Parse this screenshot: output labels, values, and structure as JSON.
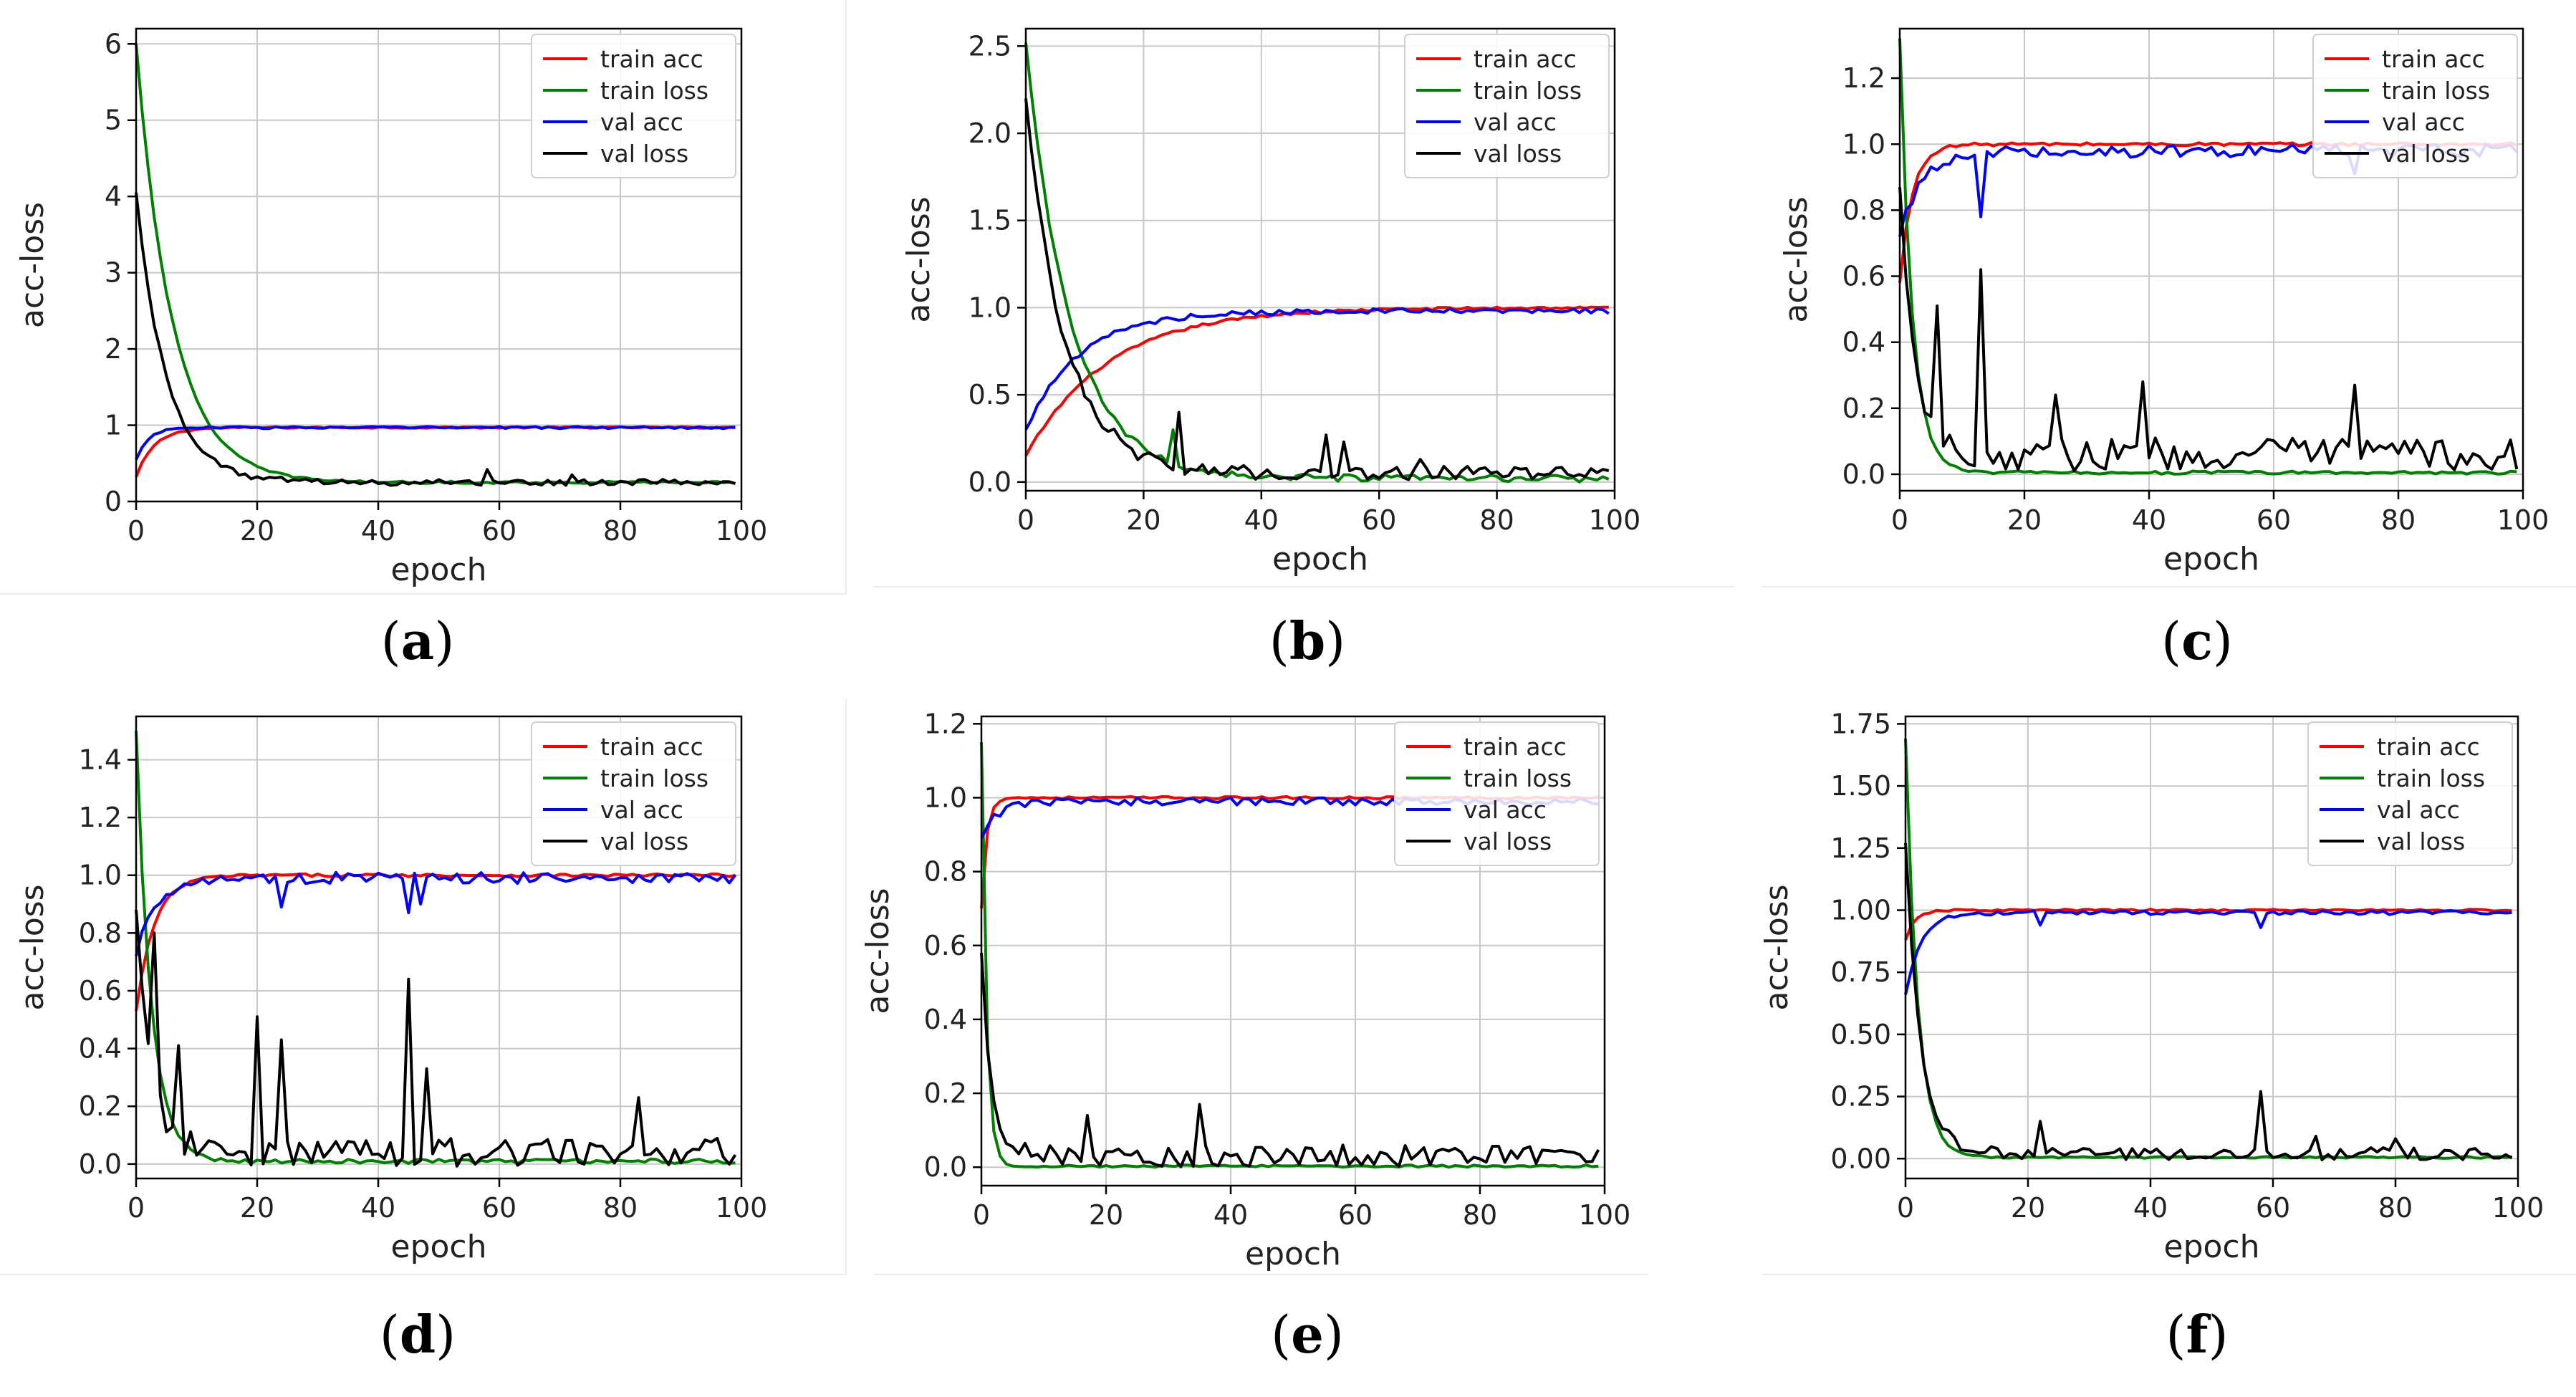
{
  "figure": {
    "captions": [
      "a",
      "b",
      "c",
      "d",
      "e",
      "f"
    ]
  },
  "colors": {
    "train_acc": "#ff0000",
    "train_loss": "#008000",
    "val_acc": "#0000ff",
    "val_loss": "#000000",
    "grid": "#c8c8c8"
  },
  "chart_data": [
    {
      "type": "line",
      "panel": "a",
      "xlabel": "epoch",
      "ylabel": "acc-loss",
      "xlim": [
        0,
        100
      ],
      "ylim": [
        0,
        6.2
      ],
      "xticks": [
        0,
        20,
        40,
        60,
        80,
        100
      ],
      "yticks": [
        0,
        1,
        2,
        3,
        4,
        5,
        6
      ],
      "ytick_labels": [
        "0",
        "1",
        "2",
        "3",
        "4",
        "5",
        "6"
      ],
      "legend": [
        "train acc",
        "train loss",
        "val acc",
        "val loss"
      ],
      "series": [
        {
          "name": "train acc",
          "kind": "acc",
          "start": 0.32,
          "plateau": 0.97,
          "tau": 3.0,
          "noise": 0.01,
          "spikes": []
        },
        {
          "name": "train loss",
          "kind": "loss",
          "start": 6.0,
          "floor": 0.25,
          "tau": 6.0,
          "noise": 0.015,
          "spikes": []
        },
        {
          "name": "val acc",
          "kind": "acc",
          "start": 0.55,
          "plateau": 0.97,
          "tau": 2.0,
          "noise": 0.015,
          "spikes": []
        },
        {
          "name": "val loss",
          "kind": "loss",
          "start": 4.05,
          "floor": 0.25,
          "tau": 5.0,
          "noise": 0.04,
          "spikes": [
            [
              58,
              0.42
            ],
            [
              72,
              0.35
            ]
          ]
        }
      ]
    },
    {
      "type": "line",
      "panel": "b",
      "xlabel": "epoch",
      "ylabel": "acc-loss",
      "xlim": [
        0,
        100
      ],
      "ylim": [
        -0.05,
        2.6
      ],
      "xticks": [
        0,
        20,
        40,
        60,
        80,
        100
      ],
      "yticks": [
        0,
        0.5,
        1,
        1.5,
        2,
        2.5
      ],
      "ytick_labels": [
        "0.0",
        "0.5",
        "1.0",
        "1.5",
        "2.0",
        "2.5"
      ],
      "legend": [
        "train acc",
        "train loss",
        "val acc",
        "val loss"
      ],
      "series": [
        {
          "name": "train acc",
          "kind": "acc",
          "start": 0.15,
          "plateau": 1.0,
          "tau": 14.0,
          "noise": 0.008,
          "spikes": []
        },
        {
          "name": "train loss",
          "kind": "loss",
          "start": 2.52,
          "floor": 0.02,
          "tau": 7.5,
          "noise": 0.02,
          "spikes": [
            [
              25,
              0.3
            ]
          ]
        },
        {
          "name": "val acc",
          "kind": "acc",
          "start": 0.3,
          "plateau": 0.98,
          "tau": 9.0,
          "noise": 0.015,
          "spikes": []
        },
        {
          "name": "val loss",
          "kind": "loss",
          "start": 2.2,
          "floor": 0.05,
          "tau": 6.5,
          "noise": 0.04,
          "spikes": [
            [
              26,
              0.4
            ],
            [
              51,
              0.27
            ],
            [
              54,
              0.23
            ],
            [
              67,
              0.13
            ]
          ]
        }
      ]
    },
    {
      "type": "line",
      "panel": "c",
      "xlabel": "epoch",
      "ylabel": "acc-loss",
      "xlim": [
        0,
        100
      ],
      "ylim": [
        -0.05,
        1.35
      ],
      "xticks": [
        0,
        20,
        40,
        60,
        80,
        100
      ],
      "yticks": [
        0,
        0.2,
        0.4,
        0.6,
        0.8,
        1.0,
        1.2
      ],
      "ytick_labels": [
        "0.0",
        "0.2",
        "0.4",
        "0.6",
        "0.8",
        "1.0",
        "1.2"
      ],
      "legend": [
        "train acc",
        "train loss",
        "val acc",
        "val loss"
      ],
      "series": [
        {
          "name": "train acc",
          "kind": "acc",
          "start": 0.58,
          "plateau": 1.0,
          "tau": 2.0,
          "noise": 0.005,
          "spikes": []
        },
        {
          "name": "train loss",
          "kind": "loss",
          "start": 1.32,
          "floor": 0.005,
          "tau": 2.0,
          "noise": 0.005,
          "spikes": []
        },
        {
          "name": "val acc",
          "kind": "acc",
          "start": 0.72,
          "plateau": 0.98,
          "tau": 3.5,
          "noise": 0.02,
          "spikes": [
            [
              13,
              0.78
            ],
            [
              73,
              0.91
            ]
          ]
        },
        {
          "name": "val loss",
          "kind": "loss",
          "start": 0.87,
          "floor": 0.06,
          "tau": 2.5,
          "noise": 0.05,
          "spikes": [
            [
              6,
              0.51
            ],
            [
              13,
              0.62
            ],
            [
              25,
              0.24
            ],
            [
              39,
              0.28
            ],
            [
              73,
              0.27
            ]
          ]
        }
      ]
    },
    {
      "type": "line",
      "panel": "d",
      "xlabel": "epoch",
      "ylabel": "acc-loss",
      "xlim": [
        0,
        100
      ],
      "ylim": [
        -0.05,
        1.55
      ],
      "xticks": [
        0,
        20,
        40,
        60,
        80,
        100
      ],
      "yticks": [
        0,
        0.2,
        0.4,
        0.6,
        0.8,
        1.0,
        1.2,
        1.4
      ],
      "ytick_labels": [
        "0.0",
        "0.2",
        "0.4",
        "0.6",
        "0.8",
        "1.0",
        "1.2",
        "1.4"
      ],
      "legend": [
        "train acc",
        "train loss",
        "val acc",
        "val loss"
      ],
      "series": [
        {
          "name": "train acc",
          "kind": "acc",
          "start": 0.53,
          "plateau": 1.0,
          "tau": 3.0,
          "noise": 0.005,
          "spikes": []
        },
        {
          "name": "train loss",
          "kind": "loss",
          "start": 1.5,
          "floor": 0.01,
          "tau": 2.5,
          "noise": 0.008,
          "spikes": []
        },
        {
          "name": "val acc",
          "kind": "acc",
          "start": 0.72,
          "plateau": 0.99,
          "tau": 3.0,
          "noise": 0.02,
          "spikes": [
            [
              24,
              0.89
            ],
            [
              45,
              0.87
            ],
            [
              47,
              0.9
            ]
          ]
        },
        {
          "name": "val loss",
          "kind": "loss",
          "start": 0.88,
          "floor": 0.04,
          "tau": 2.5,
          "noise": 0.05,
          "spikes": [
            [
              3,
              0.8
            ],
            [
              7,
              0.41
            ],
            [
              20,
              0.51
            ],
            [
              24,
              0.43
            ],
            [
              45,
              0.64
            ],
            [
              48,
              0.33
            ],
            [
              83,
              0.23
            ]
          ]
        }
      ]
    },
    {
      "type": "line",
      "panel": "e",
      "xlabel": "epoch",
      "ylabel": "acc-loss",
      "xlim": [
        0,
        100
      ],
      "ylim": [
        -0.05,
        1.22
      ],
      "xticks": [
        0,
        20,
        40,
        60,
        80,
        100
      ],
      "yticks": [
        0,
        0.2,
        0.4,
        0.6,
        0.8,
        1.0,
        1.2
      ],
      "ytick_labels": [
        "0.0",
        "0.2",
        "0.4",
        "0.6",
        "0.8",
        "1.0",
        "1.2"
      ],
      "legend": [
        "train acc",
        "train loss",
        "val acc",
        "val loss"
      ],
      "series": [
        {
          "name": "train acc",
          "kind": "acc",
          "start": 0.7,
          "plateau": 1.0,
          "tau": 0.8,
          "noise": 0.003,
          "spikes": []
        },
        {
          "name": "train loss",
          "kind": "loss",
          "start": 1.15,
          "floor": 0.003,
          "tau": 0.8,
          "noise": 0.003,
          "spikes": []
        },
        {
          "name": "val acc",
          "kind": "acc",
          "start": 0.89,
          "plateau": 0.99,
          "tau": 2.5,
          "noise": 0.01,
          "spikes": []
        },
        {
          "name": "val loss",
          "kind": "loss",
          "start": 0.58,
          "floor": 0.03,
          "tau": 1.5,
          "noise": 0.03,
          "spikes": [
            [
              17,
              0.14
            ],
            [
              35,
              0.17
            ]
          ]
        }
      ]
    },
    {
      "type": "line",
      "panel": "f",
      "xlabel": "epoch",
      "ylabel": "acc-loss",
      "xlim": [
        0,
        100
      ],
      "ylim": [
        -0.08,
        1.78
      ],
      "xticks": [
        0,
        20,
        40,
        60,
        80,
        100
      ],
      "yticks": [
        0,
        0.25,
        0.5,
        0.75,
        1.0,
        1.25,
        1.5,
        1.75
      ],
      "ytick_labels": [
        "0.00",
        "0.25",
        "0.50",
        "0.75",
        "1.00",
        "1.25",
        "1.50",
        "1.75"
      ],
      "legend": [
        "train acc",
        "train loss",
        "val acc",
        "val loss"
      ],
      "series": [
        {
          "name": "train acc",
          "kind": "acc",
          "start": 0.88,
          "plateau": 1.0,
          "tau": 1.5,
          "noise": 0.004,
          "spikes": []
        },
        {
          "name": "train loss",
          "kind": "loss",
          "start": 1.69,
          "floor": 0.005,
          "tau": 2.0,
          "noise": 0.004,
          "spikes": []
        },
        {
          "name": "val acc",
          "kind": "acc",
          "start": 0.66,
          "plateau": 0.99,
          "tau": 2.5,
          "noise": 0.008,
          "spikes": [
            [
              22,
              0.94
            ],
            [
              58,
              0.93
            ]
          ]
        },
        {
          "name": "val loss",
          "kind": "loss",
          "start": 1.27,
          "floor": 0.02,
          "tau": 2.5,
          "noise": 0.025,
          "spikes": [
            [
              22,
              0.15
            ],
            [
              58,
              0.27
            ],
            [
              67,
              0.09
            ],
            [
              80,
              0.08
            ]
          ]
        }
      ]
    }
  ]
}
